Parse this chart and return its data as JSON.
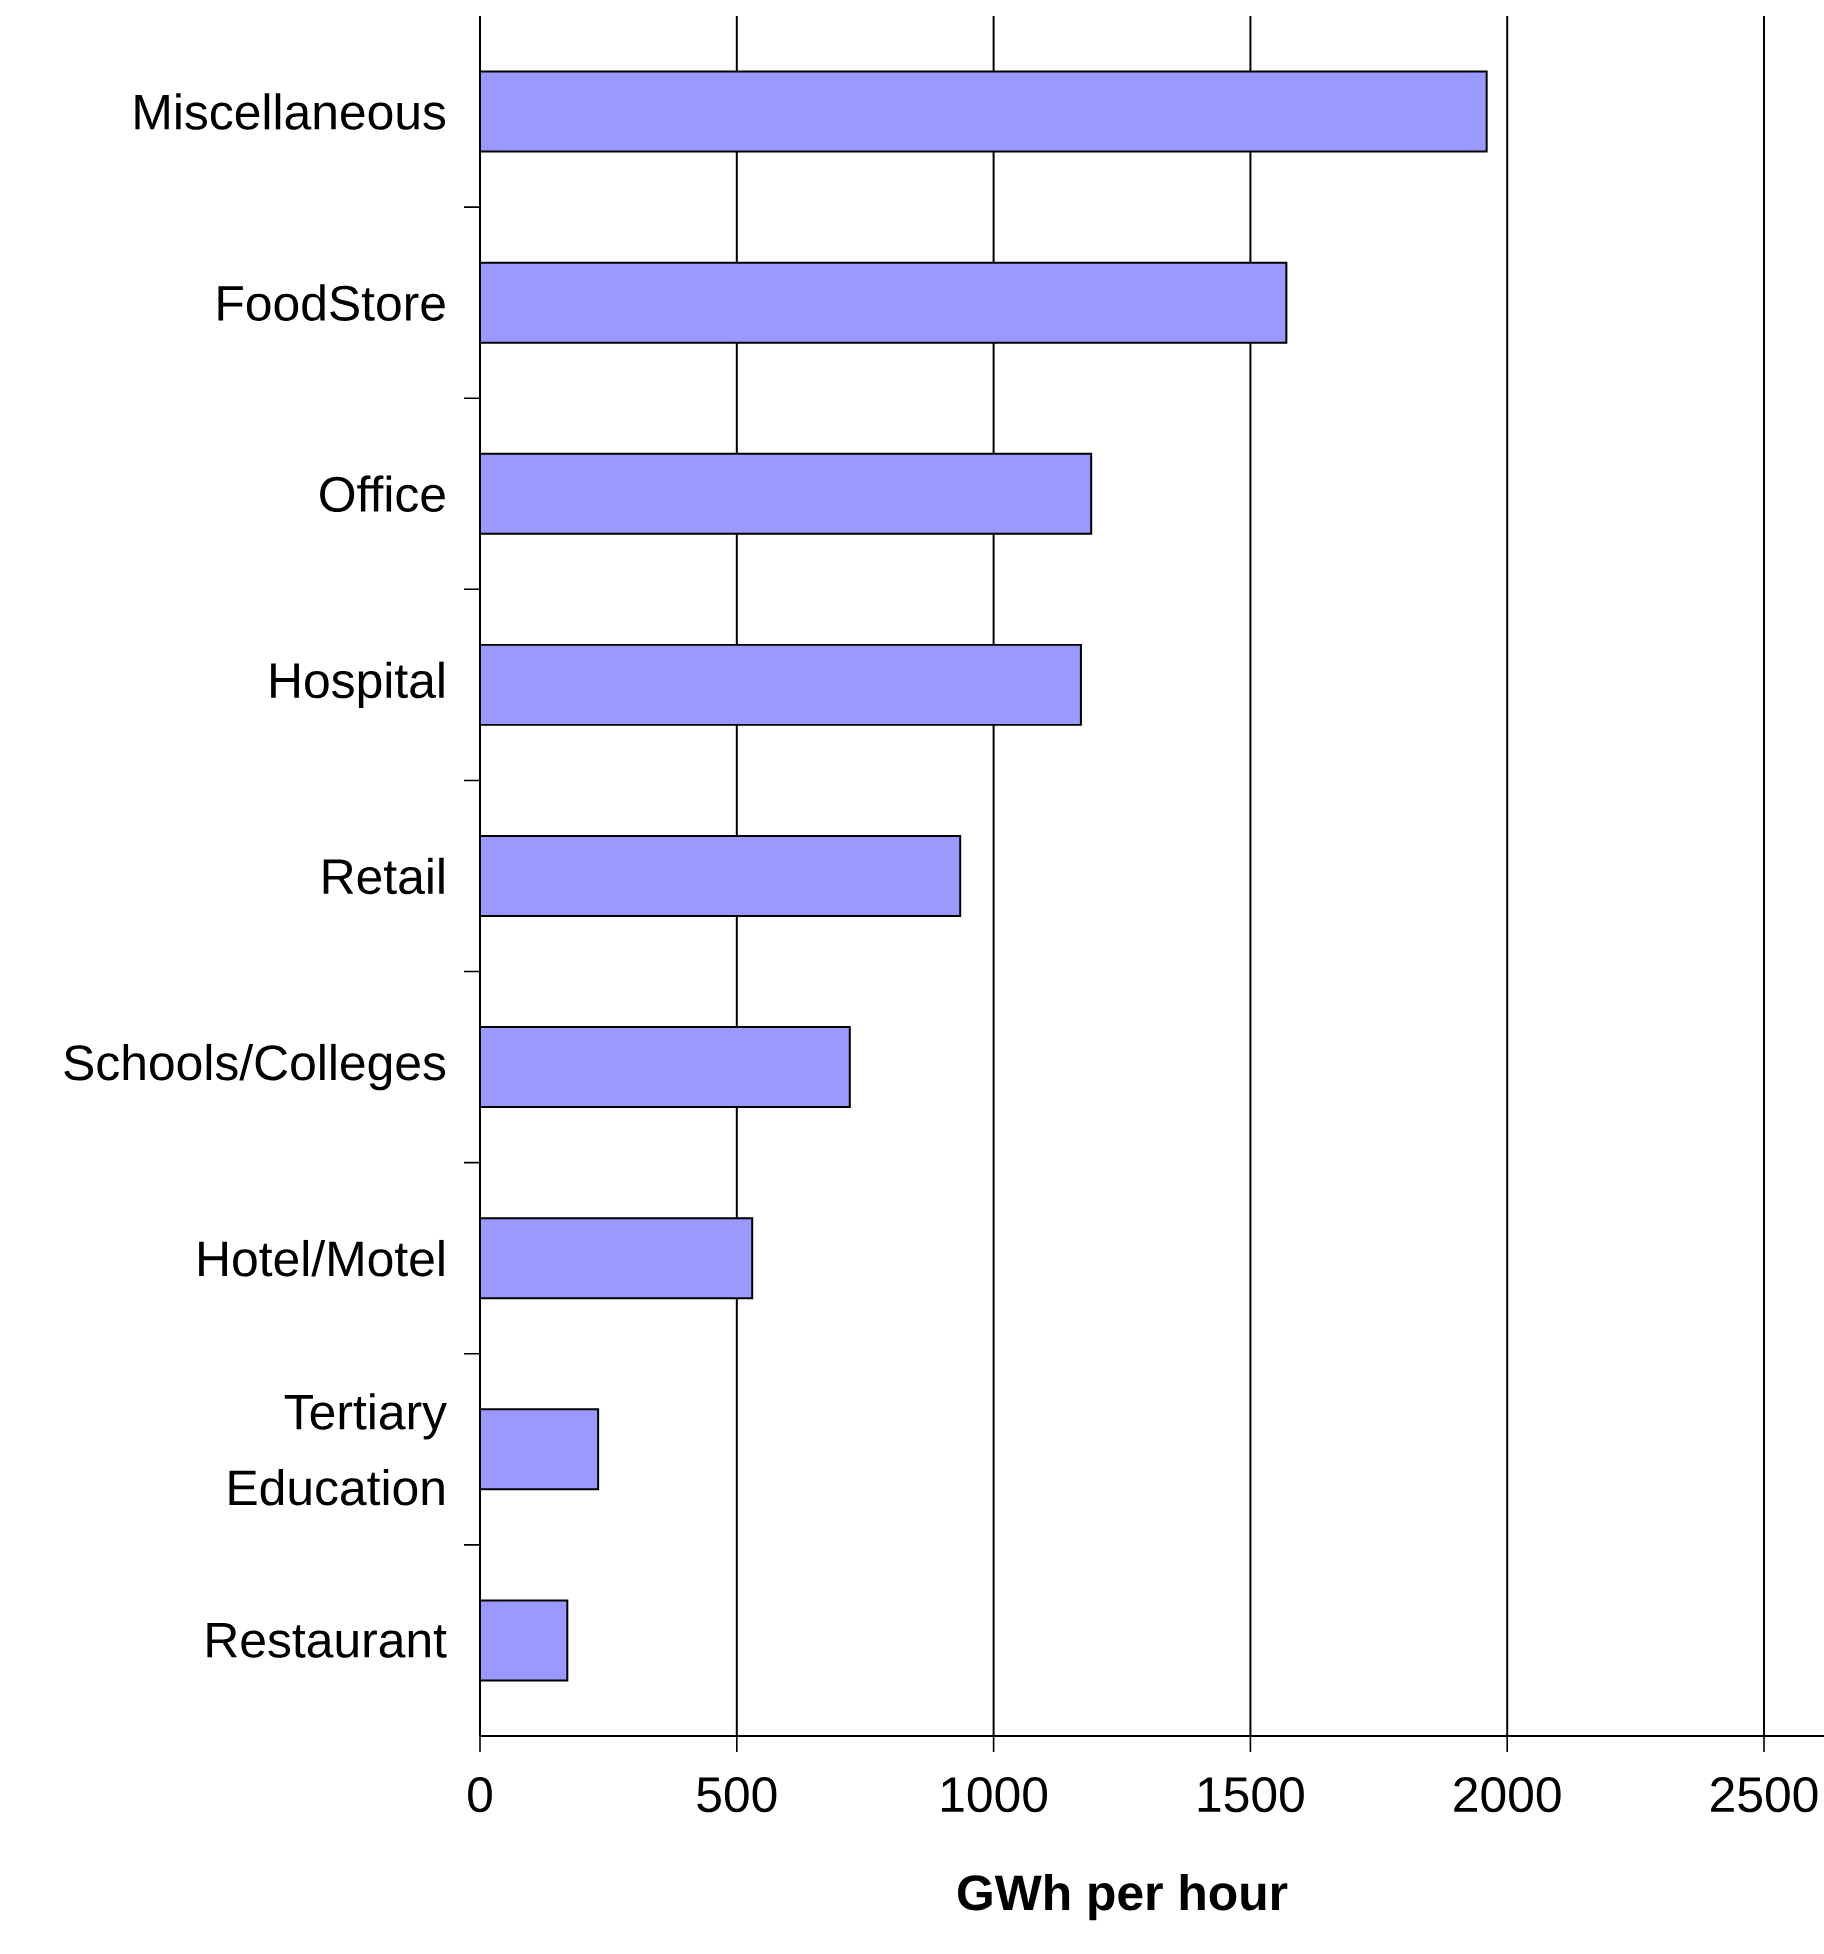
{
  "chart_data": {
    "type": "bar",
    "orientation": "horizontal",
    "xlabel": "**GWh per hour**",
    "categories": [
      "Miscellaneous",
      "FoodStore",
      "Office",
      "Hospital",
      "Retail",
      "Schools/Colleges",
      "Hotel/Motel",
      "Tertiary Education",
      "Restaurant"
    ],
    "values": [
      1960,
      1570,
      1190,
      1170,
      935,
      720,
      530,
      230,
      170
    ],
    "color": "#9999ff",
    "xlim": [
      0,
      2500
    ],
    "xticks": [
      0,
      500,
      1000,
      1500,
      2000,
      2500
    ],
    "grid": "x"
  }
}
